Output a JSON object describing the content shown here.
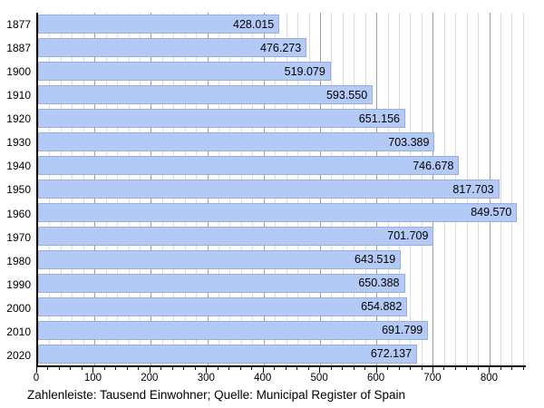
{
  "chart_data": {
    "type": "bar",
    "orientation": "horizontal",
    "title": "",
    "caption": "Zahlenleiste: Tausend Einwohner; Quelle: Municipal Register of Spain",
    "categories": [
      "1877",
      "1887",
      "1900",
      "1910",
      "1920",
      "1930",
      "1940",
      "1950",
      "1960",
      "1970",
      "1980",
      "1990",
      "2000",
      "2010",
      "2020"
    ],
    "values": [
      428.015,
      476.273,
      519.079,
      593.55,
      651.156,
      703.389,
      746.678,
      817.703,
      849.57,
      701.709,
      643.519,
      650.388,
      654.882,
      691.799,
      672.137
    ],
    "value_labels": [
      "428.015",
      "476.273",
      "519.079",
      "593.550",
      "651.156",
      "703.389",
      "746.678",
      "817.703",
      "849.570",
      "701.709",
      "643.519",
      "650.388",
      "654.882",
      "691.799",
      "672.137"
    ],
    "unit": "Tausend Einwohner",
    "xlim": [
      0,
      865
    ],
    "x_major_ticks": [
      "0",
      "100",
      "200",
      "300",
      "400",
      "500",
      "600",
      "700",
      "800"
    ],
    "x_minor_step": 20,
    "x_minor_max": 860,
    "grid": true,
    "legend": "none",
    "bar_color": "#b3c9f6",
    "bar_border_color": "#97aee2",
    "grid_major_color": "#a0a0a0",
    "grid_minor_color": "#dddddd",
    "axis_color": "#000000",
    "text_color": "#000000",
    "background_color": "#ffffff"
  }
}
